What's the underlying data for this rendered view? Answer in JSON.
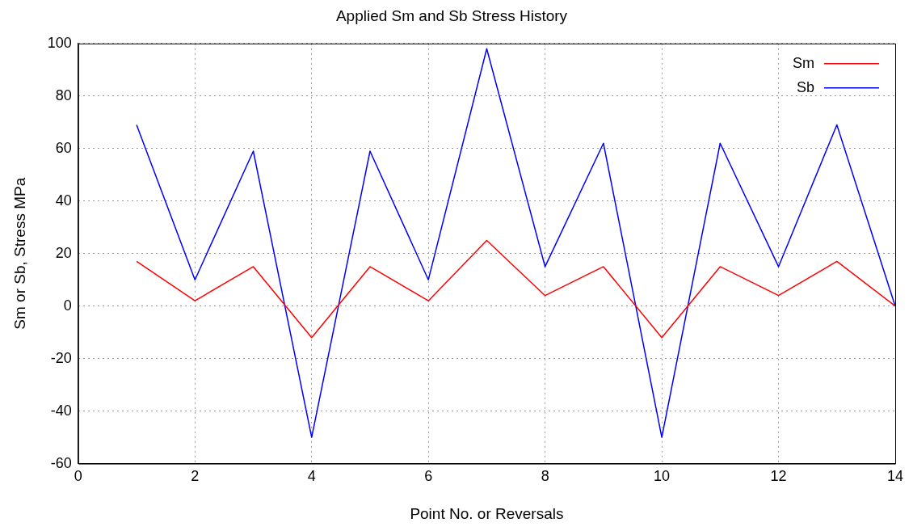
{
  "chart_data": {
    "type": "line",
    "title": "Applied Sm and Sb Stress History",
    "xlabel": "Point No. or Reversals",
    "ylabel": "Sm or Sb, Stress MPa",
    "x": [
      1,
      2,
      3,
      4,
      5,
      6,
      7,
      8,
      9,
      10,
      11,
      12,
      13,
      14
    ],
    "series": [
      {
        "name": "Sm",
        "color": "#ff0000",
        "values": [
          17,
          2,
          15,
          -12,
          15,
          2,
          25,
          4,
          15,
          -12,
          15,
          4,
          17,
          0
        ]
      },
      {
        "name": "Sb",
        "color": "#0000ff",
        "values": [
          69,
          10,
          59,
          -50,
          59,
          10,
          98,
          15,
          62,
          -50,
          62,
          15,
          69,
          0
        ]
      }
    ],
    "xlim": [
      0,
      14
    ],
    "xticks": [
      0,
      2,
      4,
      6,
      8,
      10,
      12,
      14
    ],
    "ylim": [
      -60,
      100
    ],
    "yticks": [
      -60,
      -40,
      -20,
      0,
      20,
      40,
      60,
      80,
      100
    ],
    "grid": true,
    "legend": "top right",
    "marker": "none",
    "line_style": "solid"
  }
}
